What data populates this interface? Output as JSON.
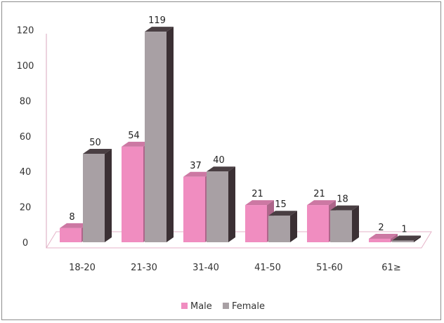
{
  "chart_data": {
    "type": "bar",
    "categories": [
      "18-20",
      "21-30",
      "31-40",
      "41-50",
      "51-60",
      "61≥"
    ],
    "series": [
      {
        "name": "Male",
        "values": [
          8,
          54,
          37,
          21,
          21,
          2
        ],
        "color": "#f08dc0"
      },
      {
        "name": "Female",
        "values": [
          50,
          119,
          40,
          15,
          18,
          1
        ],
        "color": "#a8a0a4"
      }
    ],
    "ylim": [
      0,
      120
    ],
    "yticks": [
      0,
      20,
      40,
      60,
      80,
      100,
      120
    ],
    "title": "",
    "xlabel": "",
    "ylabel": "",
    "legend_position": "bottom",
    "grid": false,
    "style": "3d-clustered-column"
  }
}
